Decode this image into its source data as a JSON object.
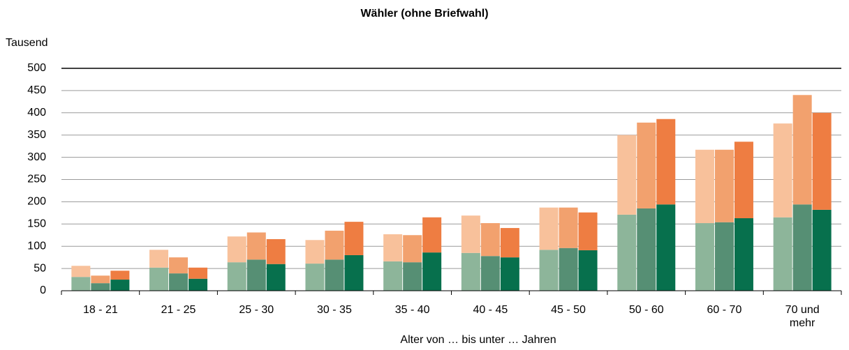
{
  "chart_data": {
    "type": "grouped-stacked-bar",
    "title": "Wähler (ohne Briefwahl)",
    "y_label": "Tausend",
    "x_label": "Alter von … bis unter … Jahren",
    "categories": [
      "18 - 21",
      "21 - 25",
      "25 - 30",
      "30 - 35",
      "35 - 40",
      "40 - 45",
      "45 - 50",
      "50 - 60",
      "60 - 70",
      "70 und mehr"
    ],
    "groups": [
      {
        "segments": [
          {
            "color": "#8db59a",
            "values": [
              31,
              52,
              64,
              61,
              66,
              85,
              92,
              171,
              152,
              165
            ]
          },
          {
            "color": "#f8c19b",
            "values": [
              25,
              40,
              58,
              53,
              61,
              84,
              95,
              179,
              165,
              211
            ]
          }
        ]
      },
      {
        "segments": [
          {
            "color": "#568f74",
            "values": [
              17,
              39,
              70,
              70,
              64,
              78,
              96,
              185,
              154,
              194
            ]
          },
          {
            "color": "#f2a16e",
            "values": [
              17,
              36,
              61,
              65,
              61,
              74,
              91,
              193,
              163,
              246
            ]
          }
        ]
      },
      {
        "segments": [
          {
            "color": "#07704d",
            "values": [
              25,
              27,
              60,
              80,
              86,
              75,
              91,
              194,
              163,
              182
            ]
          },
          {
            "color": "#ee7d42",
            "values": [
              20,
              25,
              56,
              75,
              79,
              66,
              85,
              192,
              172,
              218
            ]
          }
        ]
      }
    ],
    "ylim": [
      0,
      500
    ],
    "yticks": [
      0,
      50,
      100,
      150,
      200,
      250,
      300,
      350,
      400,
      450,
      500
    ],
    "grid": true
  }
}
